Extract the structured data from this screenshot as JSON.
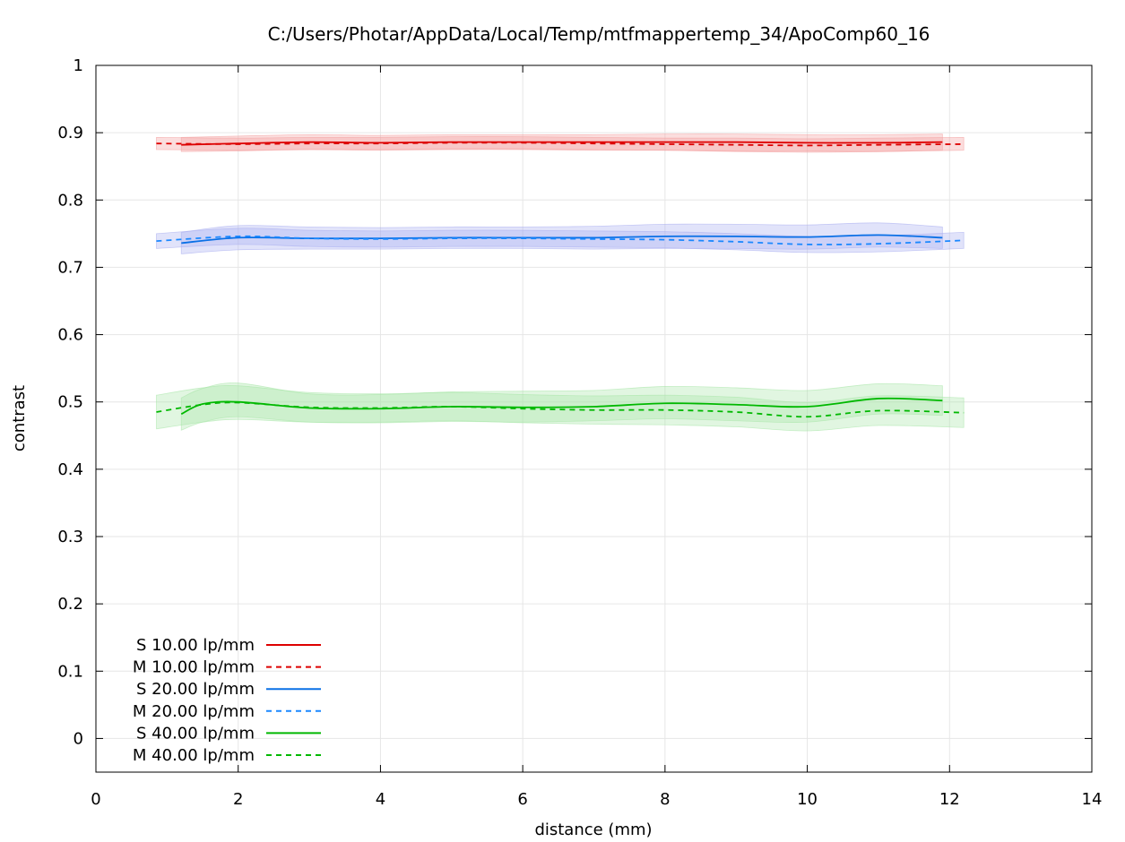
{
  "chart_data": {
    "type": "line",
    "title": "C:/Users/Photar/AppData/Local/Temp/mtfmappertemp_34/ApoComp60_16",
    "xlabel": "distance (mm)",
    "ylabel": "contrast",
    "xlim": [
      0,
      14
    ],
    "ylim": [
      -0.05,
      1
    ],
    "xticks": [
      0,
      2,
      4,
      6,
      8,
      10,
      12,
      14
    ],
    "xtick_labels": [
      "0",
      "2",
      "4",
      "6",
      "8",
      "10",
      "12",
      "14"
    ],
    "yticks": [
      0,
      0.1,
      0.2,
      0.3,
      0.4,
      0.5,
      0.6,
      0.7,
      0.8,
      0.9,
      1
    ],
    "ytick_labels": [
      "0",
      "0.1",
      "0.2",
      "0.3",
      "0.4",
      "0.5",
      "0.6",
      "0.7",
      "0.8",
      "0.9",
      "1"
    ],
    "grid": true,
    "legend_position": "bottom-left",
    "series": [
      {
        "name": "S 10.00 lp/mm",
        "color": "#dd0000",
        "dash": "solid",
        "band_color": "#f4a0a0",
        "x": [
          1.2,
          2,
          3,
          4,
          5,
          6,
          7,
          8,
          9,
          10,
          11,
          11.9
        ],
        "y": [
          0.882,
          0.884,
          0.886,
          0.885,
          0.886,
          0.886,
          0.886,
          0.886,
          0.886,
          0.885,
          0.885,
          0.886
        ],
        "lower": [
          0.872,
          0.873,
          0.875,
          0.874,
          0.875,
          0.875,
          0.874,
          0.874,
          0.873,
          0.873,
          0.872,
          0.874
        ],
        "upper": [
          0.893,
          0.895,
          0.897,
          0.896,
          0.897,
          0.897,
          0.897,
          0.898,
          0.898,
          0.897,
          0.897,
          0.898
        ]
      },
      {
        "name": "M 10.00 lp/mm",
        "color": "#dd0000",
        "dash": "dashed",
        "band_color": "#f4a0a0",
        "x": [
          0.85,
          2,
          3,
          4,
          5,
          6,
          7,
          8,
          9,
          10,
          11,
          12.2
        ],
        "y": [
          0.884,
          0.883,
          0.884,
          0.884,
          0.885,
          0.885,
          0.884,
          0.883,
          0.882,
          0.881,
          0.882,
          0.883
        ],
        "lower": [
          0.875,
          0.874,
          0.875,
          0.875,
          0.876,
          0.876,
          0.875,
          0.874,
          0.872,
          0.871,
          0.872,
          0.874
        ],
        "upper": [
          0.893,
          0.892,
          0.893,
          0.893,
          0.894,
          0.894,
          0.893,
          0.892,
          0.892,
          0.891,
          0.892,
          0.893
        ]
      },
      {
        "name": "S 20.00 lp/mm",
        "color": "#0a70e6",
        "dash": "solid",
        "band_color": "#a8aef0",
        "x": [
          1.2,
          2,
          3,
          4,
          5,
          6,
          7,
          8,
          9,
          10,
          11,
          11.9
        ],
        "y": [
          0.736,
          0.744,
          0.743,
          0.743,
          0.744,
          0.744,
          0.744,
          0.746,
          0.746,
          0.745,
          0.748,
          0.744
        ],
        "lower": [
          0.72,
          0.726,
          0.727,
          0.727,
          0.728,
          0.728,
          0.727,
          0.728,
          0.728,
          0.727,
          0.73,
          0.728
        ],
        "upper": [
          0.752,
          0.762,
          0.76,
          0.759,
          0.76,
          0.76,
          0.761,
          0.764,
          0.764,
          0.763,
          0.766,
          0.76
        ]
      },
      {
        "name": "M 20.00 lp/mm",
        "color": "#1a88ff",
        "dash": "dashed",
        "band_color": "#a8aef0",
        "x": [
          0.85,
          2,
          3,
          4,
          5,
          6,
          7,
          8,
          9,
          10,
          11,
          12.2
        ],
        "y": [
          0.739,
          0.746,
          0.743,
          0.742,
          0.743,
          0.743,
          0.742,
          0.741,
          0.738,
          0.734,
          0.735,
          0.74
        ],
        "lower": [
          0.728,
          0.734,
          0.731,
          0.73,
          0.731,
          0.731,
          0.73,
          0.729,
          0.726,
          0.722,
          0.723,
          0.728
        ],
        "upper": [
          0.75,
          0.758,
          0.755,
          0.754,
          0.755,
          0.755,
          0.754,
          0.753,
          0.75,
          0.746,
          0.747,
          0.752
        ]
      },
      {
        "name": "S 40.00 lp/mm",
        "color": "#00b800",
        "dash": "solid",
        "band_color": "#a8e6a8",
        "x": [
          1.2,
          1.5,
          2,
          3,
          4,
          5,
          6,
          7,
          8,
          9,
          10,
          11,
          11.9
        ],
        "y": [
          0.482,
          0.497,
          0.5,
          0.491,
          0.49,
          0.493,
          0.492,
          0.493,
          0.498,
          0.496,
          0.493,
          0.505,
          0.502
        ],
        "lower": [
          0.458,
          0.47,
          0.478,
          0.47,
          0.469,
          0.471,
          0.47,
          0.472,
          0.475,
          0.472,
          0.47,
          0.482,
          0.48
        ],
        "upper": [
          0.506,
          0.52,
          0.528,
          0.512,
          0.511,
          0.515,
          0.516,
          0.517,
          0.523,
          0.521,
          0.517,
          0.527,
          0.524
        ]
      },
      {
        "name": "M 40.00 lp/mm",
        "color": "#00b800",
        "dash": "dashed",
        "band_color": "#a8e6a8",
        "x": [
          0.85,
          1.5,
          2,
          3,
          4,
          5,
          6,
          7,
          8,
          9,
          10,
          11,
          12.2
        ],
        "y": [
          0.485,
          0.496,
          0.499,
          0.492,
          0.491,
          0.493,
          0.49,
          0.488,
          0.488,
          0.485,
          0.478,
          0.487,
          0.484
        ],
        "lower": [
          0.46,
          0.47,
          0.474,
          0.47,
          0.47,
          0.472,
          0.469,
          0.467,
          0.466,
          0.463,
          0.457,
          0.465,
          0.462
        ],
        "upper": [
          0.51,
          0.521,
          0.524,
          0.514,
          0.512,
          0.514,
          0.511,
          0.509,
          0.51,
          0.507,
          0.499,
          0.509,
          0.506
        ]
      }
    ]
  }
}
